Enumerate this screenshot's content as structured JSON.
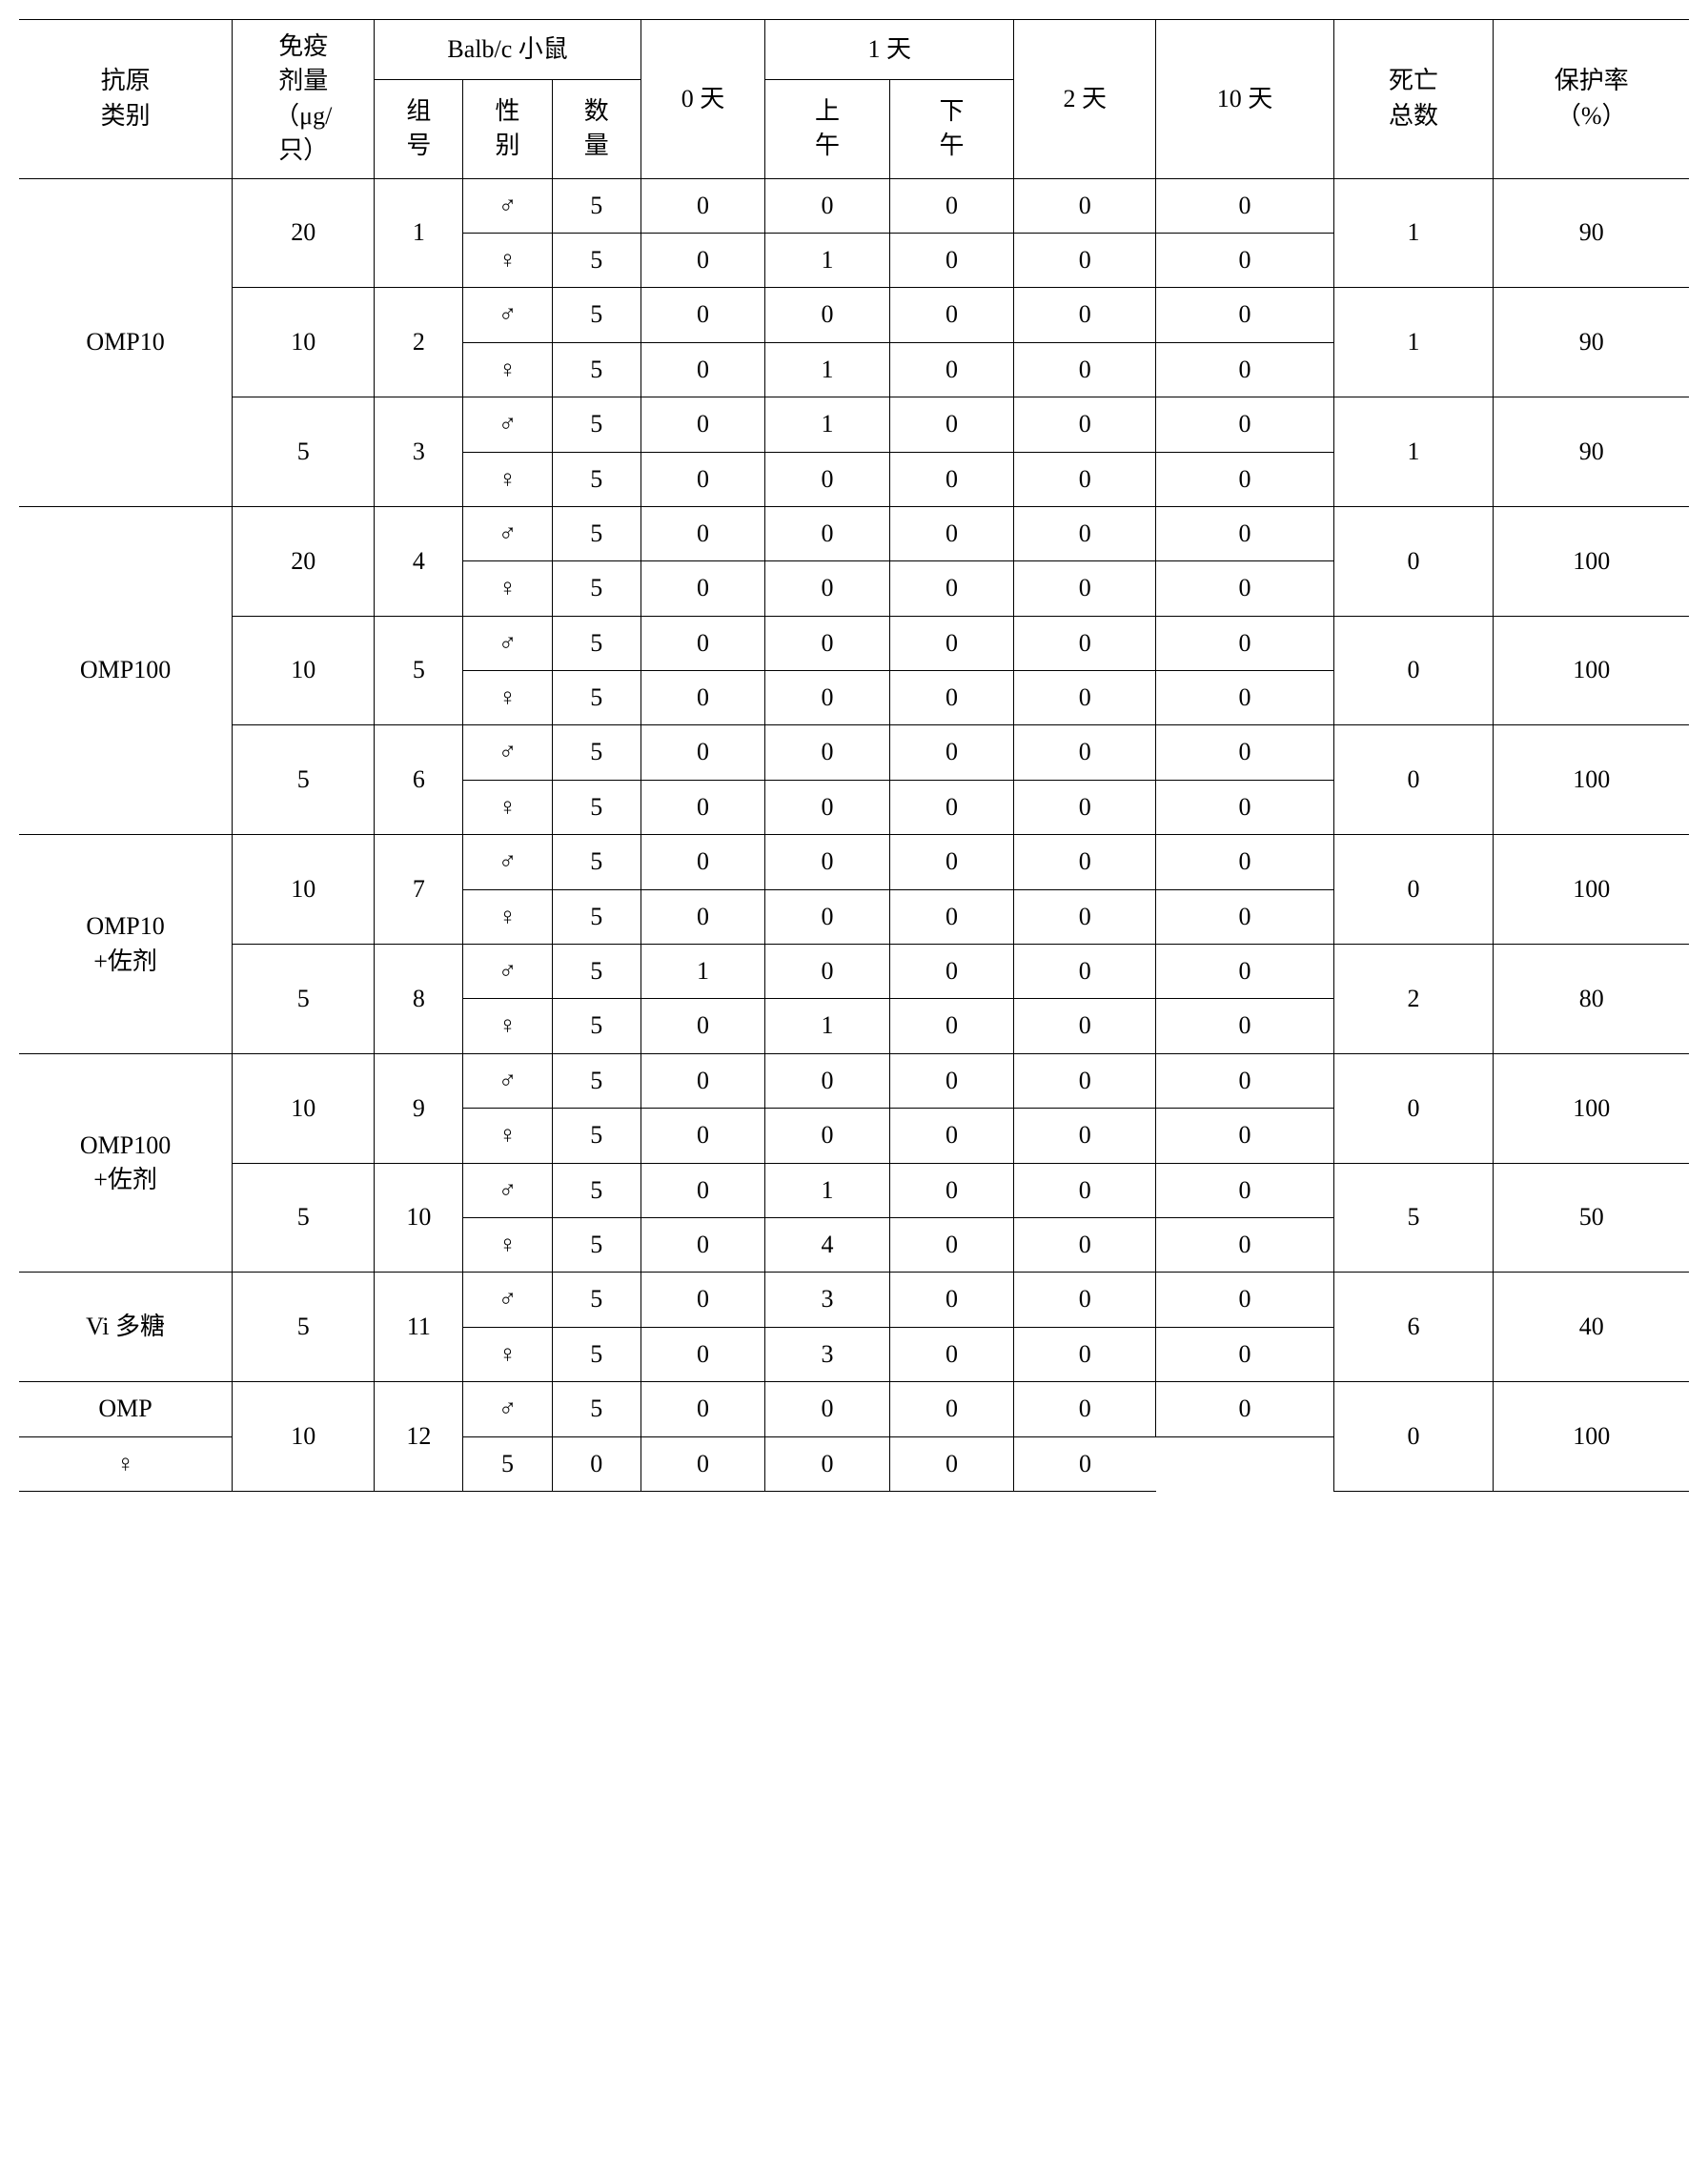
{
  "table": {
    "type": "table",
    "background_color": "#ffffff",
    "border_color": "#000000",
    "font_family": "Times New Roman / SimSun",
    "cell_fontsize_pt": 20,
    "header": {
      "antigen": "抗原\n类别",
      "dose": "免疫\n剂量\n（μg/\n只）",
      "balbc": "Balb/c 小鼠",
      "group_no": "组\n号",
      "sex": "性\n别",
      "qty": "数\n量",
      "day0": "0 天",
      "day1": "1 天",
      "day1_am": "上\n午",
      "day1_pm": "下\n午",
      "day2": "2 天",
      "day10": "10 天",
      "deaths": "死亡\n总数",
      "protect": "保护率\n（%）"
    },
    "sex_symbols": {
      "male": "♂",
      "female": "♀"
    },
    "groups": [
      {
        "antigen": "OMP10",
        "doses": [
          {
            "dose": "20",
            "group": "1",
            "deaths": "1",
            "protect": "90",
            "rows": [
              {
                "sex": "male",
                "qty": "5",
                "d0": "0",
                "am": "0",
                "pm": "0",
                "d2": "0",
                "d10": "0"
              },
              {
                "sex": "female",
                "qty": "5",
                "d0": "0",
                "am": "1",
                "pm": "0",
                "d2": "0",
                "d10": "0"
              }
            ]
          },
          {
            "dose": "10",
            "group": "2",
            "deaths": "1",
            "protect": "90",
            "rows": [
              {
                "sex": "male",
                "qty": "5",
                "d0": "0",
                "am": "0",
                "pm": "0",
                "d2": "0",
                "d10": "0"
              },
              {
                "sex": "female",
                "qty": "5",
                "d0": "0",
                "am": "1",
                "pm": "0",
                "d2": "0",
                "d10": "0"
              }
            ]
          },
          {
            "dose": "5",
            "group": "3",
            "deaths": "1",
            "protect": "90",
            "rows": [
              {
                "sex": "male",
                "qty": "5",
                "d0": "0",
                "am": "1",
                "pm": "0",
                "d2": "0",
                "d10": "0"
              },
              {
                "sex": "female",
                "qty": "5",
                "d0": "0",
                "am": "0",
                "pm": "0",
                "d2": "0",
                "d10": "0"
              }
            ]
          }
        ]
      },
      {
        "antigen": "OMP100",
        "doses": [
          {
            "dose": "20",
            "group": "4",
            "deaths": "0",
            "protect": "100",
            "rows": [
              {
                "sex": "male",
                "qty": "5",
                "d0": "0",
                "am": "0",
                "pm": "0",
                "d2": "0",
                "d10": "0"
              },
              {
                "sex": "female",
                "qty": "5",
                "d0": "0",
                "am": "0",
                "pm": "0",
                "d2": "0",
                "d10": "0"
              }
            ]
          },
          {
            "dose": "10",
            "group": "5",
            "deaths": "0",
            "protect": "100",
            "rows": [
              {
                "sex": "male",
                "qty": "5",
                "d0": "0",
                "am": "0",
                "pm": "0",
                "d2": "0",
                "d10": "0"
              },
              {
                "sex": "female",
                "qty": "5",
                "d0": "0",
                "am": "0",
                "pm": "0",
                "d2": "0",
                "d10": "0"
              }
            ]
          },
          {
            "dose": "5",
            "group": "6",
            "deaths": "0",
            "protect": "100",
            "rows": [
              {
                "sex": "male",
                "qty": "5",
                "d0": "0",
                "am": "0",
                "pm": "0",
                "d2": "0",
                "d10": "0"
              },
              {
                "sex": "female",
                "qty": "5",
                "d0": "0",
                "am": "0",
                "pm": "0",
                "d2": "0",
                "d10": "0"
              }
            ]
          }
        ]
      },
      {
        "antigen": "OMP10\n+佐剂",
        "doses": [
          {
            "dose": "10",
            "group": "7",
            "deaths": "0",
            "protect": "100",
            "rows": [
              {
                "sex": "male",
                "qty": "5",
                "d0": "0",
                "am": "0",
                "pm": "0",
                "d2": "0",
                "d10": "0"
              },
              {
                "sex": "female",
                "qty": "5",
                "d0": "0",
                "am": "0",
                "pm": "0",
                "d2": "0",
                "d10": "0"
              }
            ]
          },
          {
            "dose": "5",
            "group": "8",
            "deaths": "2",
            "protect": "80",
            "rows": [
              {
                "sex": "male",
                "qty": "5",
                "d0": "1",
                "am": "0",
                "pm": "0",
                "d2": "0",
                "d10": "0"
              },
              {
                "sex": "female",
                "qty": "5",
                "d0": "0",
                "am": "1",
                "pm": "0",
                "d2": "0",
                "d10": "0"
              }
            ]
          }
        ]
      },
      {
        "antigen": "OMP100\n+佐剂",
        "doses": [
          {
            "dose": "10",
            "group": "9",
            "deaths": "0",
            "protect": "100",
            "rows": [
              {
                "sex": "male",
                "qty": "5",
                "d0": "0",
                "am": "0",
                "pm": "0",
                "d2": "0",
                "d10": "0"
              },
              {
                "sex": "female",
                "qty": "5",
                "d0": "0",
                "am": "0",
                "pm": "0",
                "d2": "0",
                "d10": "0"
              }
            ]
          },
          {
            "dose": "5",
            "group": "10",
            "deaths": "5",
            "protect": "50",
            "rows": [
              {
                "sex": "male",
                "qty": "5",
                "d0": "0",
                "am": "1",
                "pm": "0",
                "d2": "0",
                "d10": "0"
              },
              {
                "sex": "female",
                "qty": "5",
                "d0": "0",
                "am": "4",
                "pm": "0",
                "d2": "0",
                "d10": "0"
              }
            ]
          }
        ]
      },
      {
        "antigen": "Vi 多糖",
        "doses": [
          {
            "dose": "5",
            "group": "11",
            "deaths": "6",
            "protect": "40",
            "rows": [
              {
                "sex": "male",
                "qty": "5",
                "d0": "0",
                "am": "3",
                "pm": "0",
                "d2": "0",
                "d10": "0"
              },
              {
                "sex": "female",
                "qty": "5",
                "d0": "0",
                "am": "3",
                "pm": "0",
                "d2": "0",
                "d10": "0"
              }
            ]
          }
        ]
      },
      {
        "antigen": "OMP",
        "antigen_rowspan_override": 1,
        "doses": [
          {
            "dose": "10",
            "group": "12",
            "deaths": "0",
            "protect": "100",
            "rows": [
              {
                "sex": "male",
                "qty": "5",
                "d0": "0",
                "am": "0",
                "pm": "0",
                "d2": "0",
                "d10": "0"
              },
              {
                "sex": "female",
                "qty": "5",
                "d0": "0",
                "am": "0",
                "pm": "0",
                "d2": "0",
                "d10": "0"
              }
            ]
          }
        ]
      }
    ]
  }
}
